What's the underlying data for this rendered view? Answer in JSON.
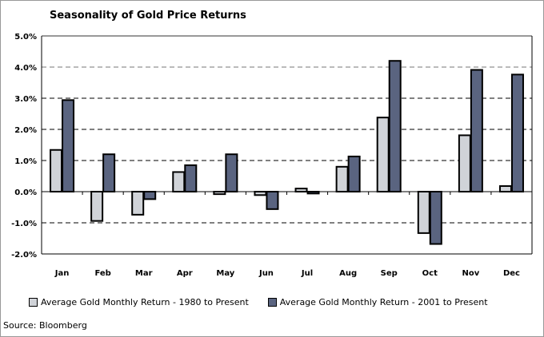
{
  "chart_data": {
    "type": "bar",
    "title": "Seasonality of Gold Price Returns",
    "categories": [
      "Jan",
      "Feb",
      "Mar",
      "Apr",
      "May",
      "Jun",
      "Jul",
      "Aug",
      "Sep",
      "Oct",
      "Nov",
      "Dec"
    ],
    "series": [
      {
        "name": "Average Gold Monthly Return - 1980 to Present",
        "color": "#d0d3d8",
        "values": [
          1.34,
          -0.94,
          -0.74,
          0.63,
          -0.08,
          -0.11,
          0.1,
          0.8,
          2.38,
          -1.33,
          1.81,
          0.18
        ]
      },
      {
        "name": "Average Gold Monthly Return - 2001 to Present",
        "color": "#5a6480",
        "values": [
          2.94,
          1.2,
          -0.24,
          0.85,
          1.2,
          -0.56,
          -0.06,
          1.13,
          4.2,
          -1.68,
          3.91,
          3.76
        ]
      }
    ],
    "ylim": [
      -2,
      5
    ],
    "yticks": [
      "-2.0%",
      "-1.0%",
      "0.0%",
      "1.0%",
      "2.0%",
      "3.0%",
      "4.0%",
      "5.0%"
    ],
    "grid": true,
    "legend": "bottom",
    "xlabel": "",
    "ylabel": ""
  },
  "source": "Source: Bloomberg"
}
